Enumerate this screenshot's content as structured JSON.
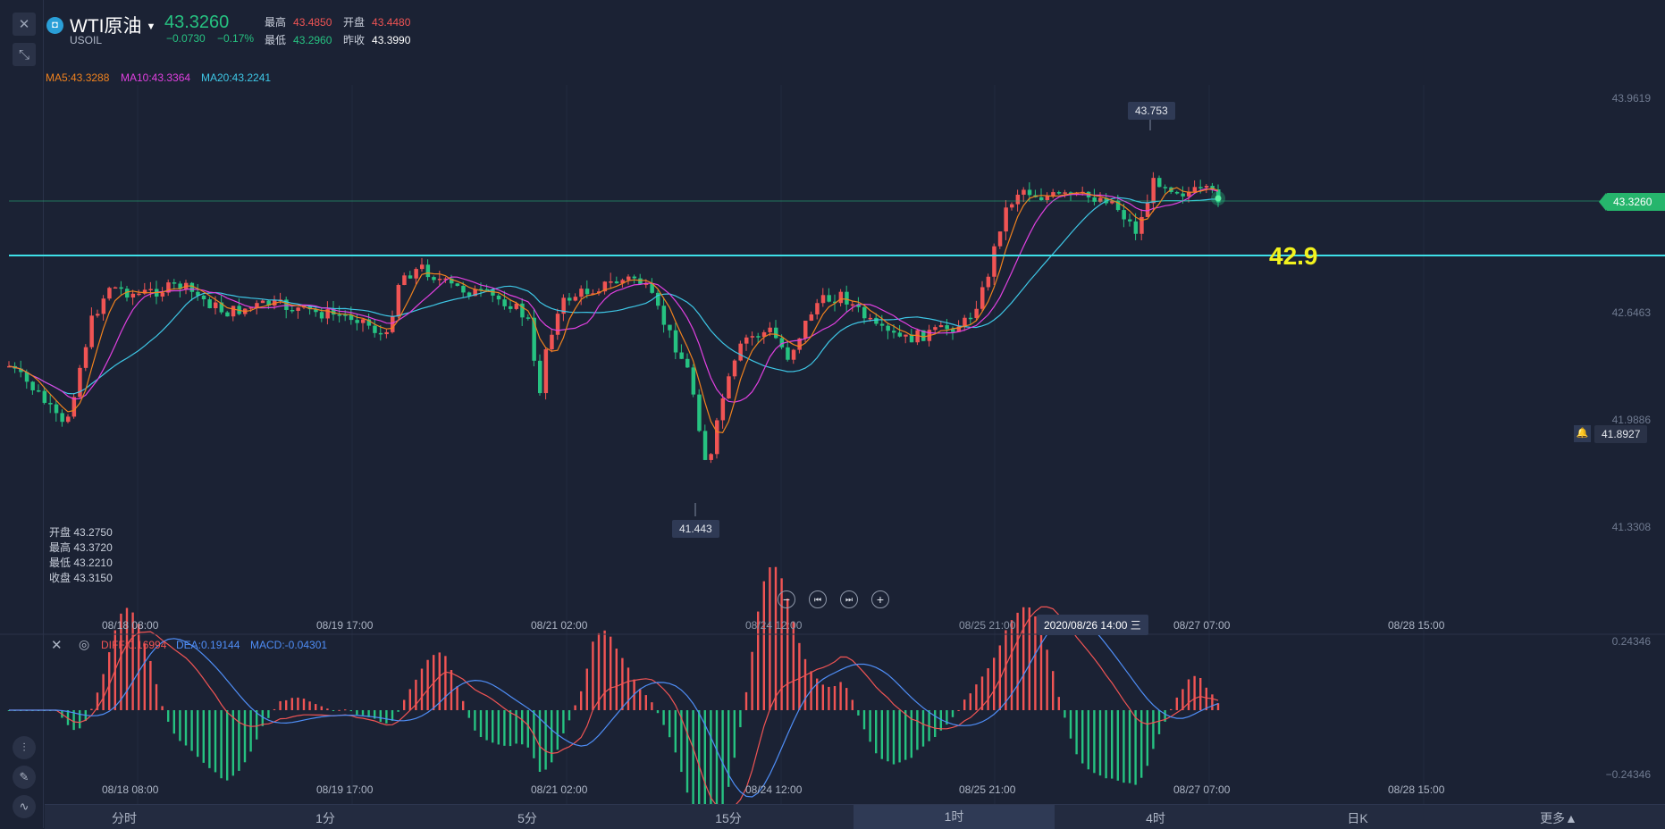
{
  "header": {
    "symbol_name": "WTI原油",
    "symbol_code": "USOIL",
    "price": "43.3260",
    "change": "−0.0730",
    "change_pct": "−0.17%",
    "high_label": "最高",
    "high": "43.4850",
    "open_label": "开盘",
    "open": "43.4480",
    "low_label": "最低",
    "low": "43.2960",
    "prev_close_label": "昨收",
    "prev_close": "43.3990"
  },
  "moving_averages": {
    "ma5": "MA5:43.3288",
    "ma5_color": "#f0821e",
    "ma10": "MA10:43.3364",
    "ma10_color": "#e040e0",
    "ma20": "MA20:43.2241",
    "ma20_color": "#3ec7e6"
  },
  "hover_ohlc": {
    "open_label": "开盘",
    "open": "43.2750",
    "high_label": "最高",
    "high": "43.3720",
    "low_label": "最低",
    "low": "43.2210",
    "close_label": "收盘",
    "close": "43.3150"
  },
  "price_axis": [
    "43.9619",
    "42.6463",
    "41.9886",
    "41.3308"
  ],
  "current_price_tag": "43.3260",
  "alert_price_tag": "41.8927",
  "max_tag": "43.753",
  "min_tag": "41.443",
  "level_annotation": "42.9",
  "time_axis": [
    "08/18 08:00",
    "08/19 17:00",
    "08/21 02:00",
    "08/24 12:00",
    "08/25 21:00",
    "08/27 07:00",
    "08/28 15:00"
  ],
  "crosshair_time": "2020/08/26 14:00 三",
  "macd": {
    "diff": "DIFF:0.16994",
    "diff_color": "#f05454",
    "dea": "DEA:0.19144",
    "dea_color": "#4f8ef7",
    "macd": "MACD:-0.04301",
    "macd_color": "#4f8ef7",
    "axis_top": "0.24346",
    "axis_bottom": "−0.24346"
  },
  "timeframes": [
    {
      "label": "分时",
      "active": false
    },
    {
      "label": "1分",
      "active": false
    },
    {
      "label": "5分",
      "active": false
    },
    {
      "label": "15分",
      "active": false
    },
    {
      "label": "1时",
      "active": true
    },
    {
      "label": "4时",
      "active": false
    },
    {
      "label": "日K",
      "active": false
    },
    {
      "label": "更多▲",
      "active": false
    }
  ],
  "colors": {
    "up": "#f05454",
    "down": "#26c281",
    "level_line": "#3ee0e8",
    "annotation": "#f2f21e",
    "background": "#1b2234"
  }
}
